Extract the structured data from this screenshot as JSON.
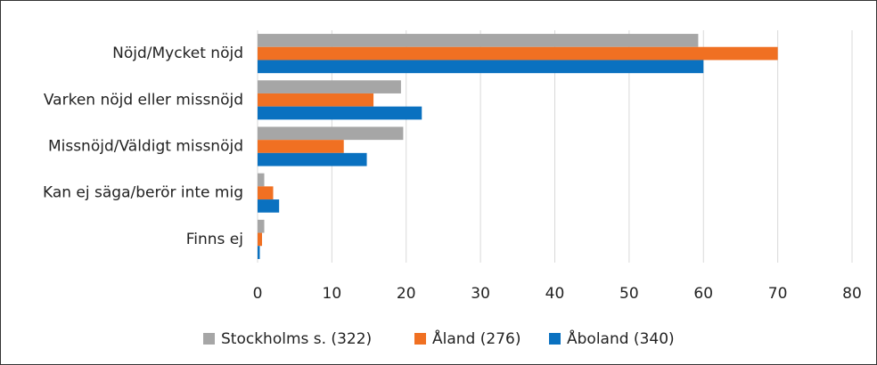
{
  "chart_data": {
    "type": "barh",
    "categories": [
      "Nöjd/Mycket nöjd",
      "Varken nöjd eller missnöjd",
      "Missnöjd/Väldigt missnöjd",
      "Kan ej säga/berör inte mig",
      "Finns ej"
    ],
    "series": [
      {
        "name": "Stockholms s. (322)",
        "color": "#a6a6a6",
        "values": [
          59.3,
          19.3,
          19.6,
          0.9,
          0.9
        ]
      },
      {
        "name": "Åland (276)",
        "color": "#f07022",
        "values": [
          70,
          15.6,
          11.6,
          2.1,
          0.6
        ]
      },
      {
        "name": "Åboland (340)",
        "color": "#0a71c0",
        "values": [
          60,
          22.1,
          14.7,
          2.9,
          0.3
        ]
      }
    ],
    "xlim": [
      0,
      80
    ],
    "xticks": [
      0,
      10,
      20,
      30,
      40,
      50,
      60,
      70,
      80
    ],
    "grid": true,
    "legend": "bottom"
  }
}
